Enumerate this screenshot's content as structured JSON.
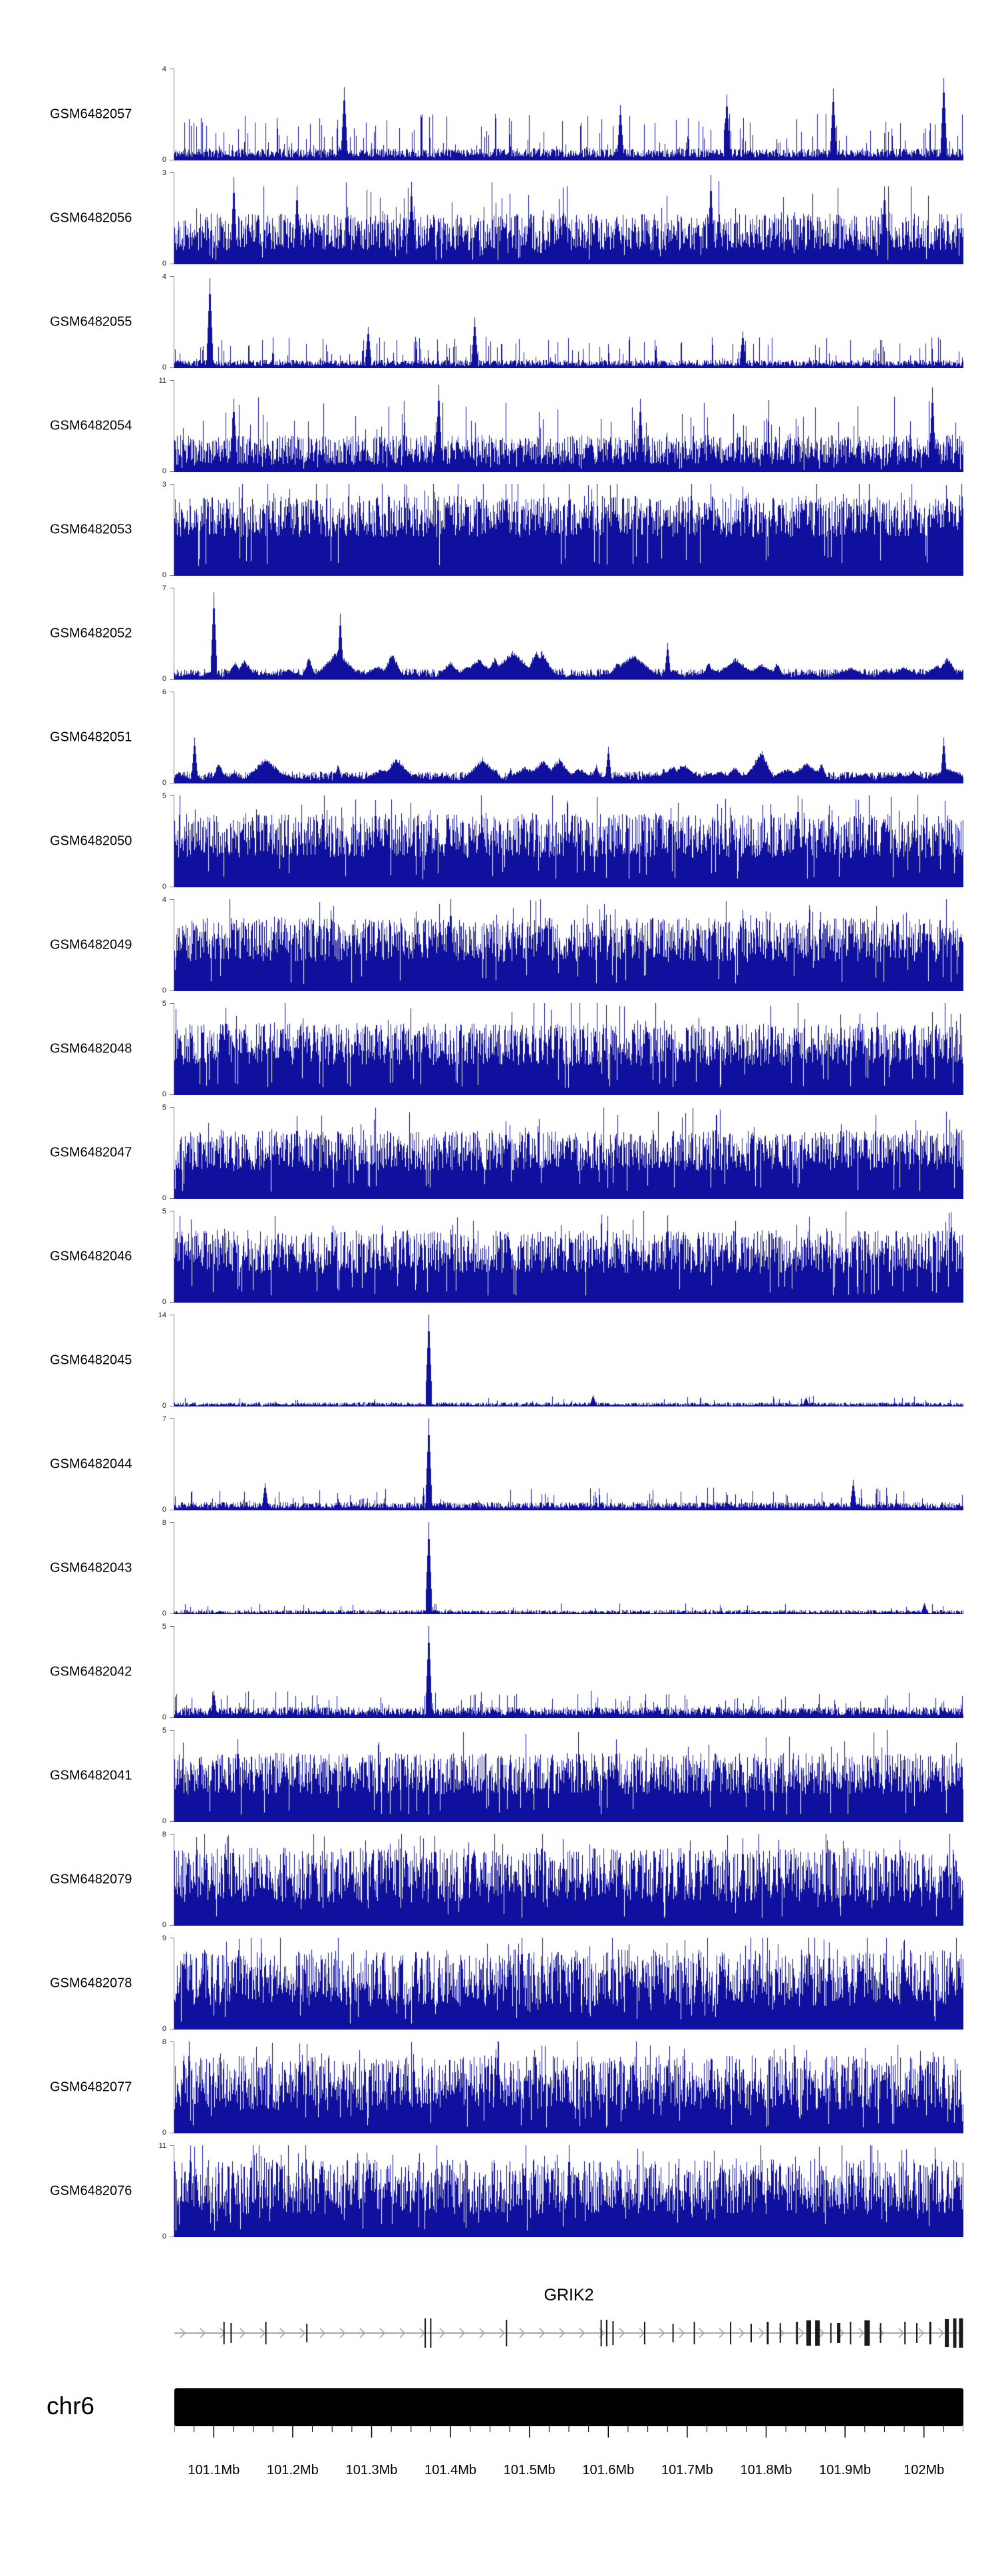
{
  "chart_data": {
    "type": "area",
    "subtype": "genome-browser-signal-tracks",
    "title": "",
    "xlabel": "",
    "ylabel": "",
    "style": {
      "signal_color": "#10109e",
      "gene_color": "#1a1a1a",
      "gene_line_color": "#8a8a8a",
      "arrow_color": "#9a9a9a",
      "ideogram_color": "#000000"
    },
    "track_axis": {
      "zero_label": "0"
    },
    "tracks": [
      {
        "label": "GSM6482057",
        "ymax": 4,
        "seed": 11,
        "profile": "low",
        "base": 0.13,
        "amp": 0,
        "tallProb": 0.12,
        "tallAmp": 0.38,
        "peaks": [
          {
            "pos": 0.215,
            "h": 0.8
          },
          {
            "pos": 0.565,
            "h": 0.6
          },
          {
            "pos": 0.7,
            "h": 0.72
          },
          {
            "pos": 0.835,
            "h": 0.78
          },
          {
            "pos": 0.975,
            "h": 0.9
          }
        ]
      },
      {
        "label": "GSM6482056",
        "ymax": 3,
        "seed": 22,
        "profile": "dense",
        "base": 0.15,
        "amp": 0.4,
        "tallProb": 0.06,
        "tallAmp": 0.4,
        "peaks": [
          {
            "pos": 0.075,
            "h": 0.95
          },
          {
            "pos": 0.155,
            "h": 0.85
          },
          {
            "pos": 0.3,
            "h": 0.9
          },
          {
            "pos": 0.68,
            "h": 0.97
          },
          {
            "pos": 0.9,
            "h": 0.85
          }
        ]
      },
      {
        "label": "GSM6482055",
        "ymax": 4,
        "seed": 33,
        "profile": "low",
        "base": 0.09,
        "amp": 0,
        "tallProb": 0.1,
        "tallAmp": 0.25,
        "peaks": [
          {
            "pos": 0.045,
            "h": 0.98
          },
          {
            "pos": 0.245,
            "h": 0.45
          },
          {
            "pos": 0.38,
            "h": 0.55
          },
          {
            "pos": 0.72,
            "h": 0.4
          }
        ]
      },
      {
        "label": "GSM6482054",
        "ymax": 11,
        "seed": 44,
        "profile": "dense",
        "base": 0.08,
        "amp": 0.32,
        "tallProb": 0.1,
        "tallAmp": 0.45,
        "peaks": [
          {
            "pos": 0.075,
            "h": 0.8
          },
          {
            "pos": 0.335,
            "h": 0.95
          },
          {
            "pos": 0.59,
            "h": 0.8
          },
          {
            "pos": 0.96,
            "h": 0.92
          }
        ]
      },
      {
        "label": "GSM6482053",
        "ymax": 3,
        "seed": 55,
        "profile": "dense",
        "base": 0.42,
        "amp": 0.45,
        "tallProb": 0.08,
        "tallAmp": 0.35,
        "peaks": [
          {
            "pos": 0.18,
            "h": 1
          },
          {
            "pos": 0.42,
            "h": 1
          },
          {
            "pos": 0.5,
            "h": 1
          },
          {
            "pos": 0.655,
            "h": 1
          },
          {
            "pos": 0.88,
            "h": 1
          }
        ]
      },
      {
        "label": "GSM6482052",
        "ymax": 7,
        "seed": 66,
        "profile": "blob",
        "base": 0.12,
        "amp": 0,
        "tallProb": 0,
        "tallAmp": 0,
        "peaks": [
          {
            "pos": 0.05,
            "h": 0.95
          },
          {
            "pos": 0.21,
            "h": 0.72
          },
          {
            "pos": 0.625,
            "h": 0.4
          }
        ]
      },
      {
        "label": "GSM6482051",
        "ymax": 6,
        "seed": 77,
        "profile": "blob",
        "base": 0.13,
        "amp": 0,
        "tallProb": 0,
        "tallAmp": 0,
        "peaks": [
          {
            "pos": 0.025,
            "h": 0.5
          },
          {
            "pos": 0.55,
            "h": 0.4
          },
          {
            "pos": 0.975,
            "h": 0.5
          }
        ]
      },
      {
        "label": "GSM6482050",
        "ymax": 5,
        "seed": 88,
        "profile": "dense",
        "base": 0.32,
        "amp": 0.48,
        "tallProb": 0.07,
        "tallAmp": 0.35,
        "peaks": [
          {
            "pos": 0.255,
            "h": 0.95
          },
          {
            "pos": 0.79,
            "h": 1.0
          }
        ]
      },
      {
        "label": "GSM6482049",
        "ymax": 4,
        "seed": 99,
        "profile": "dense",
        "base": 0.32,
        "amp": 0.48,
        "tallProb": 0.07,
        "tallAmp": 0.35,
        "peaks": [
          {
            "pos": 0.35,
            "h": 1.0
          },
          {
            "pos": 0.545,
            "h": 0.95
          }
        ]
      },
      {
        "label": "GSM6482048",
        "ymax": 5,
        "seed": 110,
        "profile": "dense",
        "base": 0.32,
        "amp": 0.46,
        "tallProb": 0.07,
        "tallAmp": 0.35,
        "peaks": [
          {
            "pos": 0.065,
            "h": 0.95
          },
          {
            "pos": 0.89,
            "h": 0.9
          }
        ]
      },
      {
        "label": "GSM6482047",
        "ymax": 5,
        "seed": 121,
        "profile": "dense",
        "base": 0.3,
        "amp": 0.45,
        "tallProb": 0.06,
        "tallAmp": 0.35,
        "peaks": [
          {
            "pos": 0.155,
            "h": 0.9
          },
          {
            "pos": 0.42,
            "h": 0.85
          }
        ]
      },
      {
        "label": "GSM6482046",
        "ymax": 5,
        "seed": 132,
        "profile": "dense",
        "base": 0.32,
        "amp": 0.47,
        "tallProb": 0.07,
        "tallAmp": 0.35,
        "peaks": [
          {
            "pos": 0.625,
            "h": 0.95
          }
        ]
      },
      {
        "label": "GSM6482045",
        "ymax": 14,
        "seed": 143,
        "profile": "spike",
        "base": 0.045,
        "amp": 0,
        "tallProb": 0.03,
        "tallAmp": 0.07,
        "peaks": [
          {
            "pos": 0.322,
            "h": 1.0
          },
          {
            "pos": 0.53,
            "h": 0.12
          },
          {
            "pos": 0.8,
            "h": 0.1
          }
        ]
      },
      {
        "label": "GSM6482044",
        "ymax": 7,
        "seed": 154,
        "profile": "low",
        "base": 0.09,
        "amp": 0,
        "tallProb": 0.07,
        "tallAmp": 0.16,
        "peaks": [
          {
            "pos": 0.115,
            "h": 0.3
          },
          {
            "pos": 0.322,
            "h": 1.0
          },
          {
            "pos": 0.86,
            "h": 0.33
          }
        ]
      },
      {
        "label": "GSM6482043",
        "ymax": 8,
        "seed": 165,
        "profile": "spike",
        "base": 0.045,
        "amp": 0,
        "tallProb": 0.03,
        "tallAmp": 0.07,
        "peaks": [
          {
            "pos": 0.322,
            "h": 1.0
          },
          {
            "pos": 0.95,
            "h": 0.12
          }
        ]
      },
      {
        "label": "GSM6482042",
        "ymax": 5,
        "seed": 176,
        "profile": "low",
        "base": 0.12,
        "amp": 0,
        "tallProb": 0.09,
        "tallAmp": 0.18,
        "peaks": [
          {
            "pos": 0.05,
            "h": 0.3
          },
          {
            "pos": 0.322,
            "h": 1.0
          }
        ]
      },
      {
        "label": "GSM6482041",
        "ymax": 5,
        "seed": 187,
        "profile": "dense",
        "base": 0.3,
        "amp": 0.45,
        "tallProb": 0.06,
        "tallAmp": 0.35,
        "peaks": [
          {
            "pos": 0.08,
            "h": 0.9
          },
          {
            "pos": 0.56,
            "h": 0.9
          }
        ]
      },
      {
        "label": "GSM6482079",
        "ymax": 8,
        "seed": 198,
        "profile": "dense",
        "base": 0.25,
        "amp": 0.6,
        "tallProb": 0.1,
        "tallAmp": 0.3,
        "peaks": [
          {
            "pos": 0.33,
            "h": 0.98
          },
          {
            "pos": 0.72,
            "h": 0.95
          }
        ]
      },
      {
        "label": "GSM6482078",
        "ymax": 9,
        "seed": 209,
        "profile": "dense",
        "base": 0.25,
        "amp": 0.62,
        "tallProb": 0.1,
        "tallAmp": 0.3,
        "peaks": [
          {
            "pos": 0.44,
            "h": 1.0
          },
          {
            "pos": 0.83,
            "h": 0.95
          }
        ]
      },
      {
        "label": "GSM6482077",
        "ymax": 8,
        "seed": 220,
        "profile": "dense",
        "base": 0.25,
        "amp": 0.6,
        "tallProb": 0.1,
        "tallAmp": 0.3,
        "peaks": [
          {
            "pos": 0.41,
            "h": 1.0
          },
          {
            "pos": 0.945,
            "h": 0.9
          }
        ]
      },
      {
        "label": "GSM6482076",
        "ymax": 11,
        "seed": 231,
        "profile": "dense",
        "base": 0.25,
        "amp": 0.6,
        "tallProb": 0.1,
        "tallAmp": 0.35,
        "peaks": [
          {
            "pos": 0.135,
            "h": 0.9
          },
          {
            "pos": 0.5,
            "h": 1.0
          }
        ]
      }
    ],
    "gene_track": {
      "title": "GRIK2",
      "strand": "forward",
      "arrow_spacing": 30,
      "exons": [
        {
          "pos": 0.063,
          "w": 2,
          "h": 34
        },
        {
          "pos": 0.072,
          "w": 2,
          "h": 30
        },
        {
          "pos": 0.116,
          "w": 2,
          "h": 34
        },
        {
          "pos": 0.168,
          "w": 2,
          "h": 28
        },
        {
          "pos": 0.318,
          "w": 2,
          "h": 44
        },
        {
          "pos": 0.325,
          "w": 2,
          "h": 44
        },
        {
          "pos": 0.421,
          "w": 2,
          "h": 40
        },
        {
          "pos": 0.541,
          "w": 2,
          "h": 40
        },
        {
          "pos": 0.548,
          "w": 2,
          "h": 40
        },
        {
          "pos": 0.556,
          "w": 2,
          "h": 36
        },
        {
          "pos": 0.596,
          "w": 2,
          "h": 34
        },
        {
          "pos": 0.632,
          "w": 2,
          "h": 28
        },
        {
          "pos": 0.659,
          "w": 2,
          "h": 34
        },
        {
          "pos": 0.705,
          "w": 2,
          "h": 34
        },
        {
          "pos": 0.731,
          "w": 2,
          "h": 28
        },
        {
          "pos": 0.752,
          "w": 3,
          "h": 34
        },
        {
          "pos": 0.768,
          "w": 2,
          "h": 30
        },
        {
          "pos": 0.789,
          "w": 3,
          "h": 34
        },
        {
          "pos": 0.804,
          "w": 7,
          "h": 38
        },
        {
          "pos": 0.815,
          "w": 7,
          "h": 38
        },
        {
          "pos": 0.832,
          "w": 2,
          "h": 30
        },
        {
          "pos": 0.842,
          "w": 5,
          "h": 30
        },
        {
          "pos": 0.857,
          "w": 2,
          "h": 34
        },
        {
          "pos": 0.878,
          "w": 8,
          "h": 38
        },
        {
          "pos": 0.895,
          "w": 2,
          "h": 30
        },
        {
          "pos": 0.926,
          "w": 2,
          "h": 34
        },
        {
          "pos": 0.941,
          "w": 2,
          "h": 30
        },
        {
          "pos": 0.958,
          "w": 3,
          "h": 34
        },
        {
          "pos": 0.979,
          "w": 6,
          "h": 42
        },
        {
          "pos": 0.989,
          "w": 5,
          "h": 44
        },
        {
          "pos": 0.997,
          "w": 6,
          "h": 44
        }
      ]
    },
    "ideogram": {
      "chromosome": "chr6"
    },
    "axis": {
      "start": 101.05,
      "end": 102.05,
      "unit": "Mb",
      "major_ticks": [
        {
          "value": 101.1,
          "label": "101.1Mb"
        },
        {
          "value": 101.2,
          "label": "101.2Mb"
        },
        {
          "value": 101.3,
          "label": "101.3Mb"
        },
        {
          "value": 101.4,
          "label": "101.4Mb"
        },
        {
          "value": 101.5,
          "label": "101.5Mb"
        },
        {
          "value": 101.6,
          "label": "101.6Mb"
        },
        {
          "value": 101.7,
          "label": "101.7Mb"
        },
        {
          "value": 101.8,
          "label": "101.8Mb"
        },
        {
          "value": 101.9,
          "label": "101.9Mb"
        },
        {
          "value": 102.0,
          "label": "102Mb"
        }
      ]
    }
  }
}
